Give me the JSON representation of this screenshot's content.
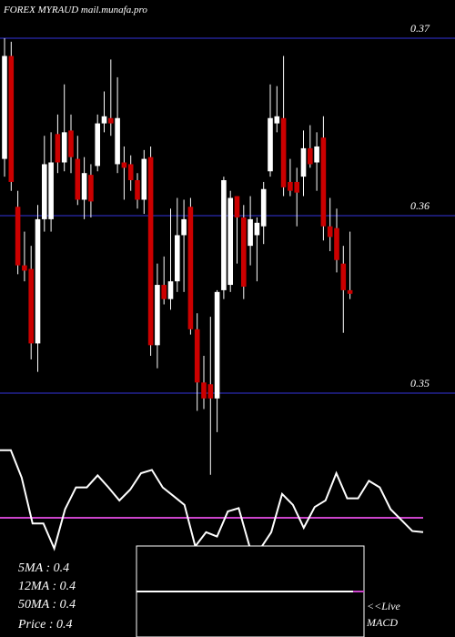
{
  "chart_data": [
    {
      "type": "candlestick",
      "title": "FOREX  MYRAUD mail.munafa.pro",
      "open": [
        0.3632,
        0.369,
        0.3605,
        0.3572,
        0.357,
        0.3528,
        0.3598,
        0.3598,
        0.3646,
        0.363,
        0.3648,
        0.3632,
        0.3609,
        0.3623,
        0.3628,
        0.3652,
        0.3655,
        0.3629,
        0.363,
        0.3629,
        0.362,
        0.3609,
        0.3633,
        0.3527,
        0.3561,
        0.3553,
        0.3563,
        0.3589,
        0.3605,
        0.3536,
        0.3506,
        0.3505,
        0.3497,
        0.3558,
        0.3561,
        0.3611,
        0.3599,
        0.3583,
        0.3589,
        0.3594,
        0.3625,
        0.3652,
        0.3655,
        0.3619,
        0.3619,
        0.3622,
        0.3638,
        0.363,
        0.3644,
        0.3594,
        0.3593,
        0.3573,
        0.3558
      ],
      "high": [
        0.37,
        0.3698,
        0.3614,
        0.3591,
        0.3583,
        0.3606,
        0.3645,
        0.3647,
        0.3657,
        0.3674,
        0.3657,
        0.3645,
        0.3633,
        0.3629,
        0.3657,
        0.367,
        0.3688,
        0.3678,
        0.3639,
        0.3634,
        0.3624,
        0.3637,
        0.3639,
        0.3573,
        0.3577,
        0.3604,
        0.361,
        0.3609,
        0.361,
        0.3545,
        0.3521,
        0.3543,
        0.3558,
        0.3622,
        0.3614,
        0.3611,
        0.3606,
        0.3611,
        0.3599,
        0.3619,
        0.3674,
        0.3673,
        0.369,
        0.3632,
        0.3627,
        0.3648,
        0.3651,
        0.3647,
        0.3656,
        0.361,
        0.3604,
        0.3583,
        0.3591
      ],
      "low": [
        0.3622,
        0.3614,
        0.3567,
        0.3563,
        0.3519,
        0.3512,
        0.3591,
        0.3591,
        0.3624,
        0.3625,
        0.3624,
        0.3606,
        0.3598,
        0.3599,
        0.3625,
        0.3647,
        0.3645,
        0.3624,
        0.3609,
        0.3614,
        0.3604,
        0.3601,
        0.3521,
        0.3514,
        0.355,
        0.3547,
        0.3557,
        0.3557,
        0.3533,
        0.349,
        0.3491,
        0.3454,
        0.3478,
        0.3553,
        0.3557,
        0.3573,
        0.3553,
        0.3572,
        0.3563,
        0.3584,
        0.3622,
        0.3647,
        0.3611,
        0.3611,
        0.3594,
        0.3611,
        0.3627,
        0.3614,
        0.3586,
        0.358,
        0.3568,
        0.3534,
        0.3553
      ],
      "close": [
        0.369,
        0.3619,
        0.3572,
        0.3569,
        0.3528,
        0.3598,
        0.3629,
        0.363,
        0.363,
        0.3647,
        0.3633,
        0.3609,
        0.3624,
        0.3608,
        0.3652,
        0.3656,
        0.3652,
        0.3655,
        0.3627,
        0.362,
        0.3609,
        0.3632,
        0.3527,
        0.3561,
        0.3553,
        0.3563,
        0.3589,
        0.3598,
        0.3536,
        0.3506,
        0.3497,
        0.3497,
        0.3557,
        0.362,
        0.361,
        0.3599,
        0.356,
        0.3598,
        0.3596,
        0.3615,
        0.3655,
        0.3656,
        0.3616,
        0.3614,
        0.3613,
        0.3638,
        0.3629,
        0.3639,
        0.3594,
        0.3588,
        0.3575,
        0.3558,
        0.3556
      ],
      "ylim": [
        0.35,
        0.37
      ],
      "yticks": [
        0.35,
        0.36,
        0.37
      ],
      "up_color": "#ffffff",
      "down_color": "#cc0000",
      "grid_color": "#1a1a6e"
    },
    {
      "type": "line",
      "color": "#ffffff",
      "values": [
        96,
        96,
        71,
        29,
        29,
        6,
        42,
        62,
        62,
        73,
        62,
        50,
        60,
        75,
        78,
        62,
        54,
        46,
        8,
        21,
        17,
        40,
        43,
        8,
        6,
        21,
        56,
        46,
        25,
        44,
        50,
        75,
        52,
        52,
        68,
        62,
        42,
        32,
        22,
        21
      ],
      "ylim": [
        0,
        100
      ],
      "annotation": [
        "<<Live",
        "MACD"
      ]
    }
  ],
  "indicators": [
    "5MA : 0.4",
    "12MA : 0.4",
    "50MA : 0.4",
    "Price  : 0.4"
  ]
}
